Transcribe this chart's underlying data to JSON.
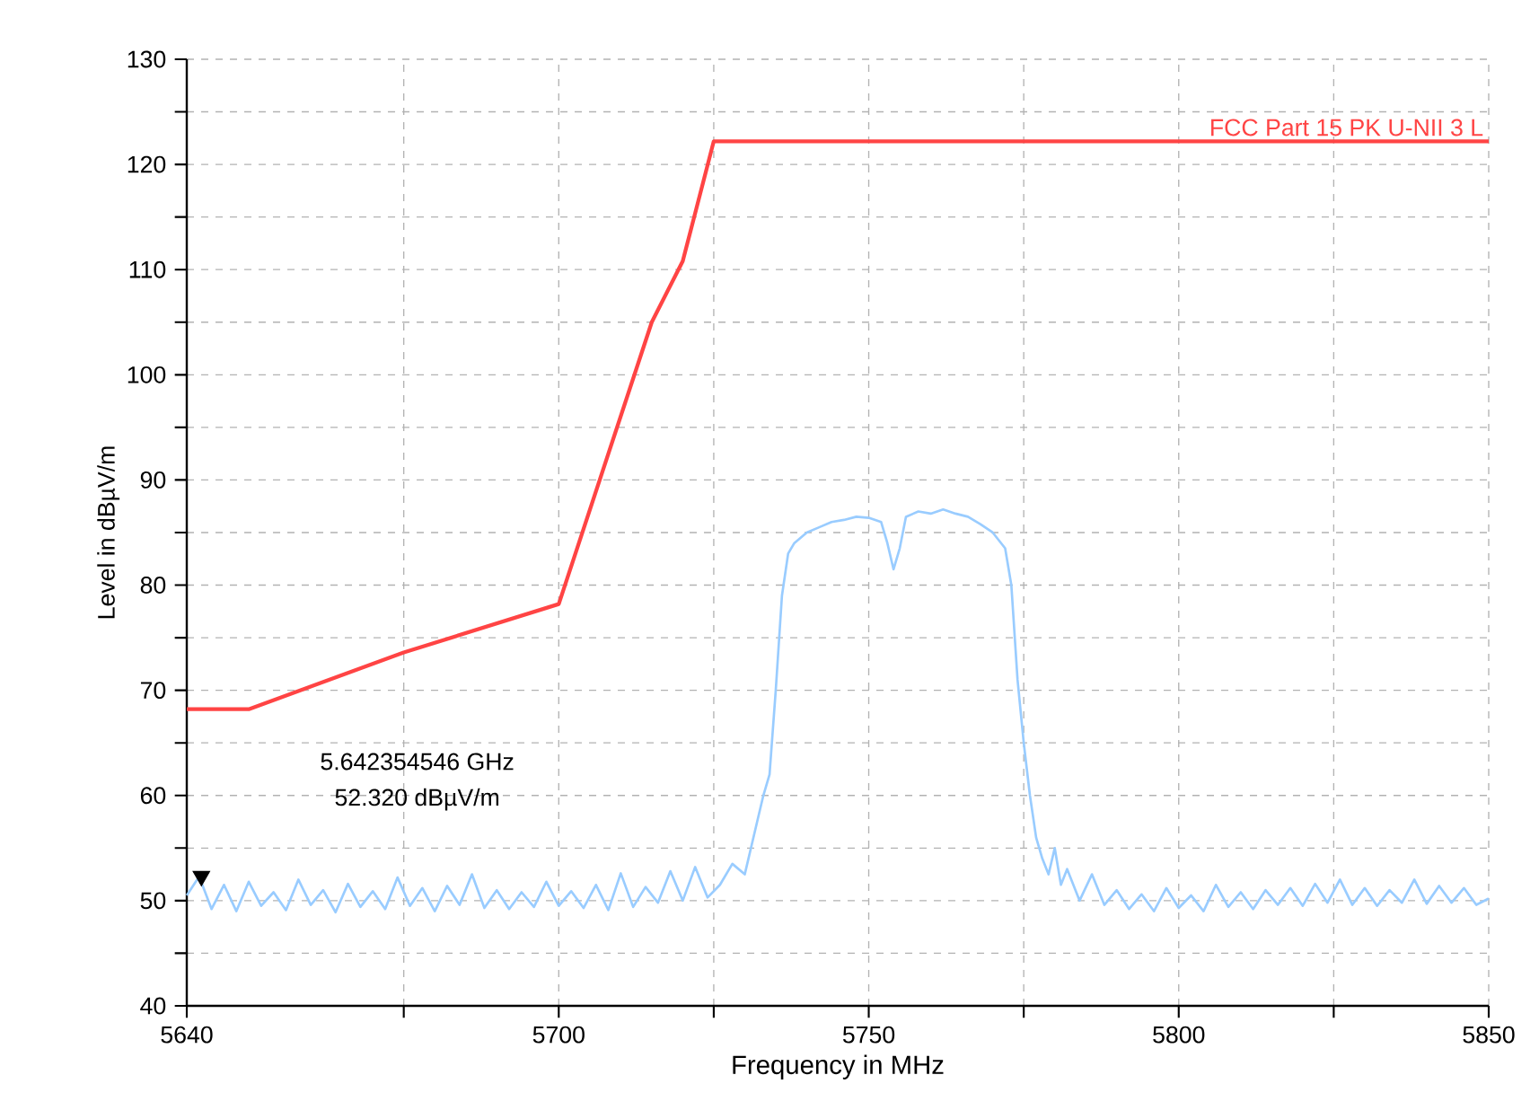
{
  "chart_data": {
    "type": "line",
    "xlabel": "Frequency in MHz",
    "ylabel": "Level in dBµV/m",
    "xlim": [
      5640,
      5850
    ],
    "ylim": [
      40,
      130
    ],
    "xticks": [
      5640,
      {
        "value": 5675,
        "label": null
      },
      5700,
      {
        "value": 5725,
        "label": null
      },
      5750,
      {
        "value": 5775,
        "label": null
      },
      5800,
      {
        "value": 5825,
        "label": null
      },
      5850
    ],
    "yticks": [
      40,
      {
        "value": 45,
        "label": null
      },
      50,
      {
        "value": 55,
        "label": null
      },
      60,
      {
        "value": 65,
        "label": null
      },
      70,
      {
        "value": 75,
        "label": null
      },
      80,
      {
        "value": 85,
        "label": null
      },
      90,
      {
        "value": 95,
        "label": null
      },
      100,
      {
        "value": 105,
        "label": null
      },
      110,
      {
        "value": 115,
        "label": null
      },
      120,
      {
        "value": 125,
        "label": null
      },
      130
    ],
    "grid": true,
    "series": [
      {
        "color": "#99ccff",
        "x": [
          5640,
          5642,
          5644,
          5646,
          5648,
          5650,
          5652,
          5654,
          5656,
          5658,
          5660,
          5662,
          5664,
          5666,
          5668,
          5670,
          5672,
          5674,
          5676,
          5678,
          5680,
          5682,
          5684,
          5686,
          5688,
          5690,
          5692,
          5694,
          5696,
          5698,
          5700,
          5702,
          5704,
          5706,
          5708,
          5710,
          5712,
          5714,
          5716,
          5718,
          5720,
          5722,
          5724,
          5726,
          5728,
          5730,
          5731,
          5732,
          5733,
          5734,
          5735,
          5736,
          5737,
          5738,
          5740,
          5742,
          5744,
          5746,
          5748,
          5750,
          5752,
          5753,
          5754,
          5755,
          5756,
          5758,
          5760,
          5762,
          5764,
          5766,
          5768,
          5770,
          5772,
          5773,
          5774,
          5775,
          5776,
          5777,
          5778,
          5779,
          5780,
          5781,
          5782,
          5784,
          5786,
          5788,
          5790,
          5792,
          5794,
          5796,
          5798,
          5800,
          5802,
          5804,
          5806,
          5808,
          5810,
          5812,
          5814,
          5816,
          5818,
          5820,
          5822,
          5824,
          5826,
          5828,
          5830,
          5832,
          5834,
          5836,
          5838,
          5840,
          5842,
          5844,
          5846,
          5848,
          5850
        ],
        "values": [
          50.5,
          52.3,
          49.2,
          51.5,
          49.0,
          51.8,
          49.5,
          50.8,
          49.1,
          52.0,
          49.6,
          51.0,
          48.9,
          51.6,
          49.4,
          50.9,
          49.2,
          52.2,
          49.5,
          51.2,
          49.0,
          51.4,
          49.6,
          52.5,
          49.3,
          51.0,
          49.2,
          50.8,
          49.4,
          51.8,
          49.5,
          50.9,
          49.3,
          51.5,
          49.1,
          52.6,
          49.4,
          51.3,
          49.8,
          52.8,
          50.0,
          53.2,
          50.3,
          51.5,
          53.5,
          52.5,
          55.0,
          57.5,
          60.0,
          62.0,
          70.0,
          79.0,
          83.0,
          84.0,
          85.0,
          85.5,
          86.0,
          86.2,
          86.5,
          86.4,
          86.0,
          84.0,
          81.5,
          83.5,
          86.5,
          87.0,
          86.8,
          87.2,
          86.8,
          86.5,
          85.8,
          85.0,
          83.5,
          80.0,
          71.0,
          65.0,
          60.0,
          56.0,
          54.0,
          52.5,
          55.0,
          51.5,
          53.0,
          50.0,
          52.5,
          49.6,
          51.0,
          49.2,
          50.6,
          49.0,
          51.2,
          49.3,
          50.5,
          49.0,
          51.5,
          49.4,
          50.8,
          49.2,
          51.0,
          49.6,
          51.2,
          49.5,
          51.6,
          49.8,
          52.0,
          49.6,
          51.2,
          49.5,
          51.0,
          49.8,
          52.0,
          49.7,
          51.4,
          49.8,
          51.2,
          49.6,
          50.2
        ]
      },
      {
        "name": "FCC Part 15 PK U-NII 3 L",
        "color": "#ff4444",
        "x": [
          5640,
          5650,
          5675,
          5700,
          5715,
          5720,
          5725,
          5850
        ],
        "values": [
          68.2,
          68.2,
          73.6,
          78.2,
          105.0,
          110.8,
          122.2,
          122.2
        ]
      },
      {
        "type": "scatter",
        "marker": "triangle",
        "color": "#000000",
        "x": [
          5642.354546
        ],
        "values": [
          52.32
        ]
      }
    ],
    "annotations": [
      "5.642354546 GHz",
      "52.320 dBµV/m"
    ]
  }
}
